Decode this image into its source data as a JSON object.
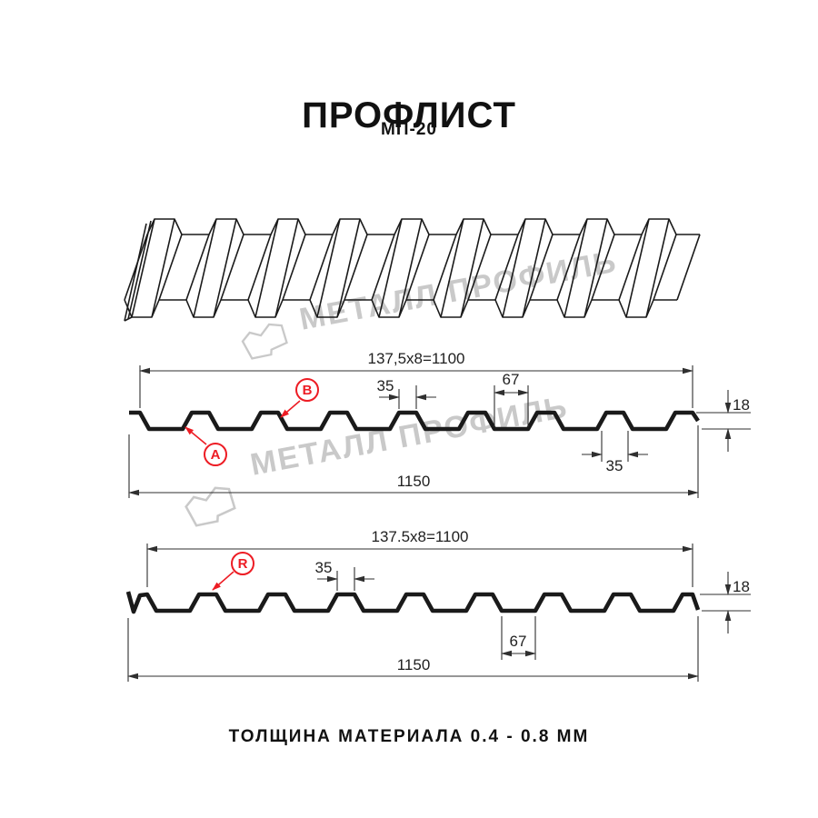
{
  "header": {
    "title": "ПРОФЛИСТ",
    "subtitle": "МП-20"
  },
  "footer": {
    "text": "ТОЛЩИНА МАТЕРИАЛА 0.4 - 0.8 ММ"
  },
  "watermark": {
    "text": "МЕТАЛЛ ПРОФИЛЬ",
    "logo": "metal-profile-logo"
  },
  "colors": {
    "line": "#1a1a1a",
    "dim": "#2f2f2f",
    "red": "#ed1c24",
    "watermark": "#c9c9c9"
  },
  "section1": {
    "module_width": "137,5x8=1100",
    "crest_width_top": "35",
    "valley_width": "67",
    "height": "18",
    "crest_width_bottom": "35",
    "overall_width": "1150",
    "marker_a": "A",
    "marker_b": "B"
  },
  "section2": {
    "module_width": "137.5x8=1100",
    "crest_width_top": "35",
    "height": "18",
    "valley_width": "67",
    "overall_width": "1150",
    "marker_r": "R"
  }
}
